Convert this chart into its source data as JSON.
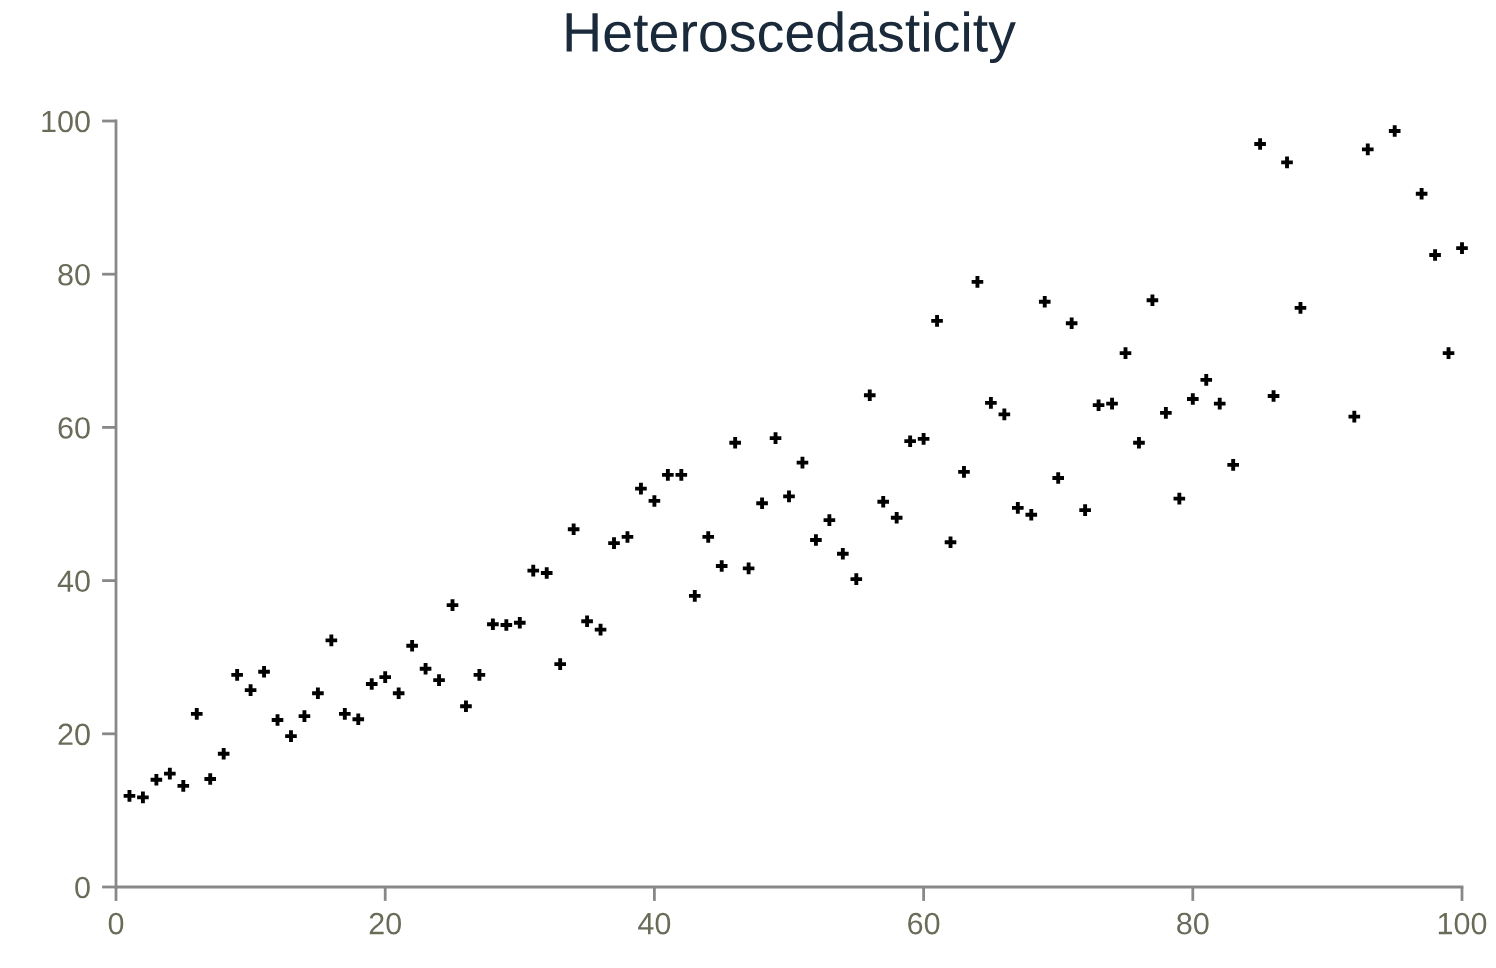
{
  "chart_data": {
    "type": "scatter",
    "title": "Heteroscedasticity",
    "x": [
      1,
      2,
      3,
      4,
      5,
      6,
      7,
      8,
      9,
      10,
      11,
      12,
      13,
      14,
      15,
      16,
      17,
      18,
      19,
      20,
      21,
      22,
      23,
      24,
      25,
      26,
      27,
      28,
      29,
      30,
      31,
      32,
      33,
      34,
      35,
      36,
      37,
      38,
      39,
      40,
      41,
      42,
      43,
      44,
      45,
      46,
      47,
      48,
      49,
      50,
      51,
      52,
      53,
      54,
      55,
      56,
      57,
      58,
      59,
      60,
      61,
      62,
      63,
      64,
      65,
      66,
      67,
      68,
      69,
      70,
      71,
      72,
      73,
      74,
      75,
      76,
      77,
      78,
      79,
      80,
      81,
      82,
      83,
      85,
      86,
      87,
      88,
      92,
      93,
      95,
      97,
      98,
      99,
      100
    ],
    "series": [
      {
        "color": "#000000",
        "values": [
          11.9,
          11.7,
          14.0,
          14.8,
          13.2,
          22.6,
          14.1,
          17.4,
          27.7,
          25.7,
          28.1,
          21.8,
          19.7,
          22.3,
          25.3,
          32.2,
          22.6,
          21.9,
          26.5,
          27.4,
          25.3,
          31.5,
          28.5,
          27.0,
          36.8,
          23.6,
          27.7,
          34.3,
          34.2,
          34.5,
          41.3,
          41.0,
          29.1,
          46.7,
          34.7,
          33.6,
          44.9,
          45.7,
          52.0,
          50.4,
          53.8,
          53.8,
          38.0,
          45.7,
          41.9,
          58.0,
          41.6,
          50.1,
          58.6,
          51.0,
          55.4,
          45.3,
          47.9,
          43.5,
          40.2,
          64.2,
          50.3,
          48.2,
          58.2,
          58.5,
          73.9,
          45.0,
          54.2,
          79.0,
          63.2,
          61.7,
          49.5,
          48.6,
          76.4,
          53.4,
          73.6,
          49.2,
          62.9,
          63.1,
          69.7,
          58.0,
          76.6,
          61.9,
          50.7,
          63.7,
          66.2,
          63.1,
          55.1,
          97.0,
          64.1,
          94.6,
          75.6,
          61.4,
          96.3,
          98.7,
          90.5,
          82.5,
          69.7,
          83.4
        ]
      }
    ],
    "xlim": [
      0,
      100
    ],
    "ylim": [
      0,
      100
    ],
    "xticks": [
      0,
      20,
      40,
      60,
      80,
      100
    ],
    "yticks": [
      0,
      20,
      40,
      60,
      80,
      100
    ],
    "grid": false,
    "marker": "cross"
  }
}
